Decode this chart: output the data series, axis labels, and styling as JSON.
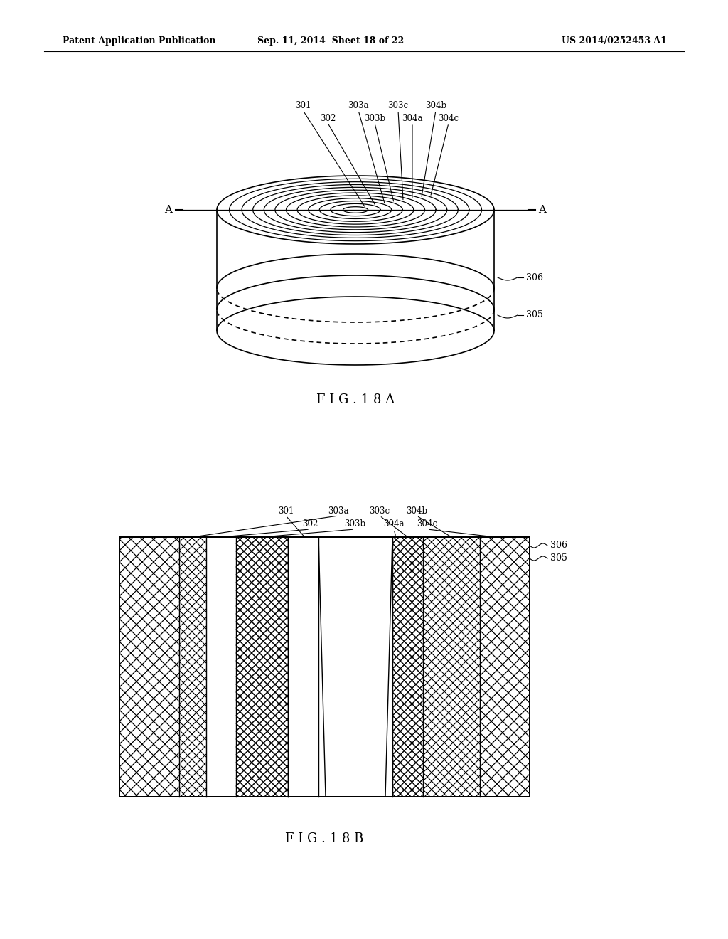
{
  "header_left": "Patent Application Publication",
  "header_mid": "Sep. 11, 2014  Sheet 18 of 22",
  "header_right": "US 2014/0252453 A1",
  "fig18a_label": "F I G . 1 8 A",
  "fig18b_label": "F I G . 1 8 B",
  "label_306": "306",
  "label_305": "305",
  "background": "#ffffff",
  "line_color": "#000000",
  "top_labels_row1": [
    "301",
    "303a",
    "303c",
    "304b"
  ],
  "top_labels_row2": [
    "302",
    "303b",
    "304a",
    "304c"
  ]
}
